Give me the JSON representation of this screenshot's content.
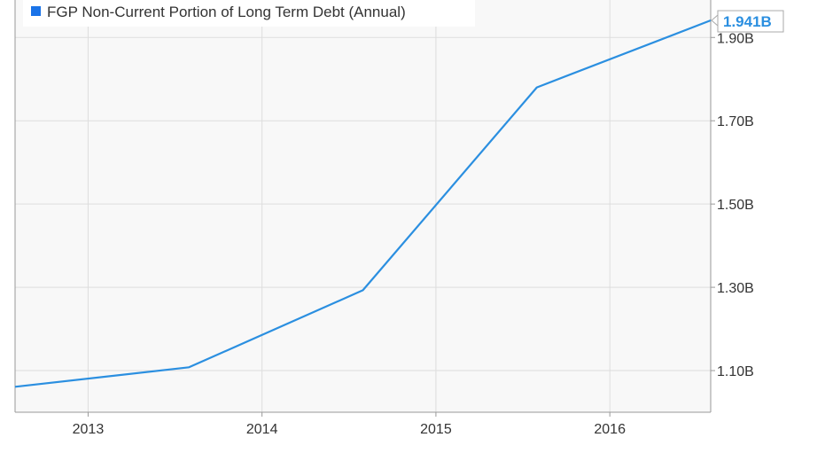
{
  "chart_data": {
    "type": "line",
    "legend": {
      "label": "FGP Non-Current Portion of Long Term Debt (Annual)",
      "color": "#1a73e8",
      "placement": "top-left"
    },
    "series": [
      {
        "name": "FGP Non-Current Portion of Long Term Debt (Annual)",
        "color": "#2b8fe0",
        "x": [
          2012.58,
          2013.58,
          2014.58,
          2015.58,
          2016.58
        ],
        "values": [
          1.061,
          1.108,
          1.293,
          1.78,
          1.941
        ]
      }
    ],
    "x_ticks": [
      2013,
      2014,
      2015,
      2016
    ],
    "x_tick_labels": [
      "2013",
      "2014",
      "2015",
      "2016"
    ],
    "y_ticks": [
      1.1,
      1.3,
      1.5,
      1.7,
      1.9
    ],
    "y_tick_labels": [
      "1.10B",
      "1.30B",
      "1.50B",
      "1.70B",
      "1.90B"
    ],
    "xlim": [
      2012.58,
      2016.58
    ],
    "ylim": [
      1.0,
      1.99
    ],
    "y_axis_position": "right",
    "last_value_label": "1.941B",
    "grid": true,
    "background": "#f8f8f8",
    "grid_color": "#dddddd",
    "axis_color": "#999999",
    "text_color": "#333333"
  }
}
